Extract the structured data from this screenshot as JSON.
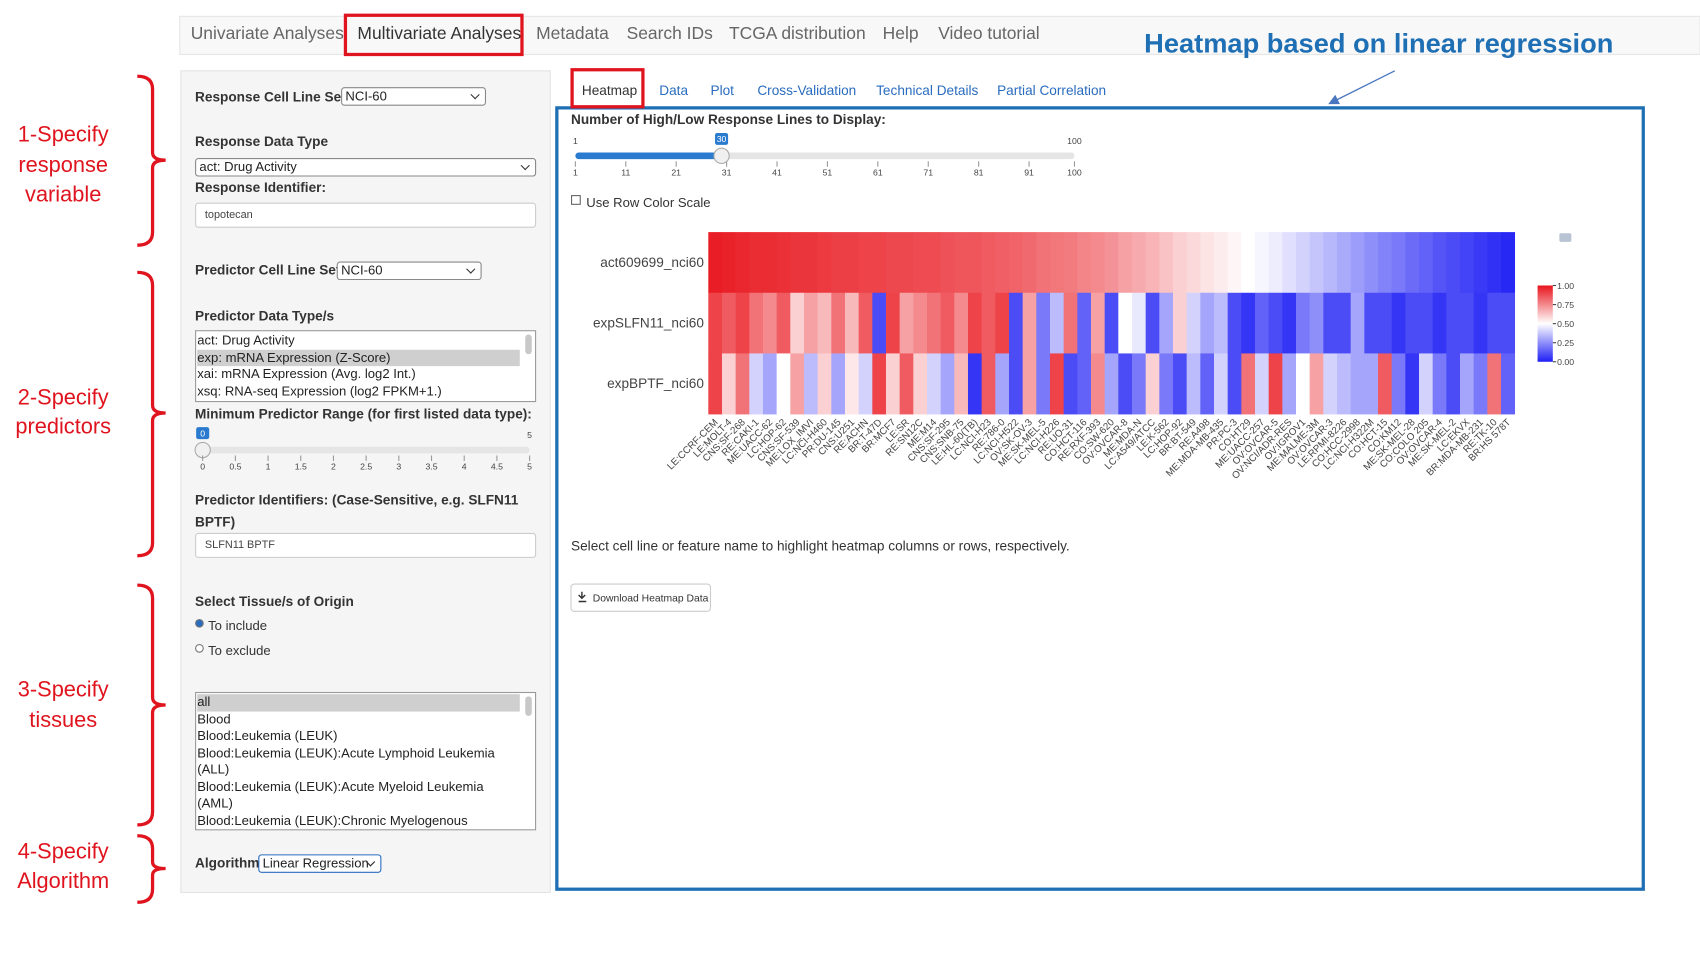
{
  "nav": {
    "tabs": [
      "Univariate Analyses",
      "Multivariate Analyses",
      "Metadata",
      "Search IDs",
      "TCGA distribution",
      "Help",
      "Video tutorial"
    ]
  },
  "title": "Heatmap based on linear regression",
  "annotations": [
    [
      "1-Specify",
      "response",
      "variable"
    ],
    [
      "2-Specify",
      "predictors"
    ],
    [
      "3-Specify",
      "tissues"
    ],
    [
      "4-Specify",
      "Algorithm"
    ]
  ],
  "sidebar": {
    "response_cell_line_set": {
      "label": "Response Cell Line Set",
      "value": "NCI-60"
    },
    "response_data_type": {
      "label": "Response Data Type",
      "value": "act: Drug Activity"
    },
    "response_identifier": {
      "label": "Response Identifier:",
      "value": "topotecan"
    },
    "predictor_cell_line_set": {
      "label": "Predictor Cell Line Set",
      "value": "NCI-60"
    },
    "predictor_data_types": {
      "label": "Predictor Data Type/s",
      "options": [
        "act: Drug Activity",
        "exp: mRNA Expression (Z-Score)",
        "xai: mRNA Expression (Avg. log2 Int.)",
        "xsq: RNA-seq Expression (log2 FPKM+1.)"
      ]
    },
    "min_predictor_range": {
      "label": "Minimum Predictor Range (for first listed data type):",
      "min": 0,
      "max": 5,
      "value": 0,
      "ticks": [
        0,
        0.5,
        1,
        1.5,
        2,
        2.5,
        3,
        3.5,
        4,
        4.5,
        5
      ]
    },
    "predictor_identifiers": {
      "label": "Predictor Identifiers: (Case-Sensitive, e.g. SLFN11 BPTF)",
      "value": "SLFN11 BPTF"
    },
    "tissue_origin": {
      "label": "Select Tissue/s of Origin",
      "options": [
        "To include",
        "To exclude"
      ]
    },
    "tissues": [
      "all",
      "Blood",
      "Blood:Leukemia (LEUK)",
      "Blood:Leukemia (LEUK):Acute Lymphoid Leukemia (ALL)",
      "Blood:Leukemia (LEUK):Acute Myeloid Leukemia (AML)",
      "Blood:Leukemia (LEUK):Chronic Myelogenous Leukemia (CML)"
    ],
    "algorithm": {
      "label": "Algorithm",
      "value": "Linear Regression"
    }
  },
  "main": {
    "subtabs": [
      "Heatmap",
      "Data",
      "Plot",
      "Cross-Validation",
      "Technical Details",
      "Partial Correlation"
    ],
    "lines_slider": {
      "label": "Number of High/Low Response Lines to Display:",
      "min": 1,
      "max": 100,
      "value": 30,
      "ticks": [
        1,
        11,
        21,
        31,
        41,
        51,
        61,
        71,
        81,
        91,
        100
      ]
    },
    "row_color_scale": "Use Row Color Scale",
    "note": "Select cell line or feature name to highlight heatmap columns or rows, respectively.",
    "download": "Download Heatmap Data"
  },
  "chart_data": {
    "type": "heatmap",
    "y": [
      "act609699_nci60",
      "expSLFN11_nci60",
      "expBPTF_nci60"
    ],
    "x": [
      "LE:CCRF-CEM",
      "LE:MOLT-4",
      "CNS:SF-268",
      "RE:CAKI-1",
      "ME:UACC-62",
      "LC:HOP-62",
      "CNS:SF-539",
      "ME:LOX_IMVI",
      "LC:NCI-H460",
      "PR:DU-145",
      "CNS:U251",
      "RE:ACHN",
      "BR:T-47D",
      "BR:MCF7",
      "LE:SR",
      "RE:SN12C",
      "ME:M14",
      "CNS:SF-295",
      "CNS:SNB-75",
      "LE:HL-60(TB)",
      "LC:NCI-H23",
      "RE:786-0",
      "LC:NCI-H522",
      "OV:SK-OV-3",
      "ME:SK-MEL-5",
      "LC:NCI-H226",
      "RE:UO-31",
      "CO:HCT-116",
      "RE:RXF-393",
      "CO:SW-620",
      "OV:OVCAR-8",
      "ME:MDA-N",
      "LC:A549/ATCC",
      "LE:K-562",
      "LC:HOP-92",
      "BR:BT-549",
      "RE:A498",
      "ME:MDA-MB-435",
      "PR:PC-3",
      "CO:HT29",
      "ME:UACC-257",
      "OV:OVCAR-5",
      "OV:NCI/ADR-RES",
      "OV:IGROV1",
      "ME:MALME-3M",
      "OV:OVCAR-3",
      "LE:RPMI-8226",
      "CO:HCC-2998",
      "LC:NCI-H322M",
      "CO:HCT-15",
      "CO:KM12",
      "ME:SK-MEL-28",
      "CO:COLO 205",
      "OV:OVCAR-4",
      "ME:SK-MEL-2",
      "LC:EKVX",
      "BR:MDA-MB-231",
      "RE:TK-10",
      "BR:HS 578T"
    ],
    "values": [
      [
        0.98,
        0.97,
        0.96,
        0.95,
        0.95,
        0.94,
        0.93,
        0.93,
        0.92,
        0.91,
        0.91,
        0.9,
        0.9,
        0.89,
        0.89,
        0.88,
        0.88,
        0.87,
        0.86,
        0.86,
        0.85,
        0.84,
        0.83,
        0.82,
        0.8,
        0.79,
        0.78,
        0.76,
        0.75,
        0.73,
        0.7,
        0.68,
        0.66,
        0.63,
        0.6,
        0.58,
        0.56,
        0.54,
        0.52,
        0.5,
        0.48,
        0.46,
        0.43,
        0.4,
        0.37,
        0.34,
        0.31,
        0.28,
        0.25,
        0.22,
        0.2,
        0.17,
        0.15,
        0.12,
        0.1,
        0.08,
        0.06,
        0.04,
        0.02
      ],
      [
        0.9,
        0.85,
        0.9,
        0.8,
        0.75,
        0.85,
        0.6,
        0.7,
        0.65,
        0.8,
        0.65,
        0.85,
        0.1,
        0.9,
        0.7,
        0.75,
        0.8,
        0.85,
        0.75,
        0.9,
        0.85,
        0.9,
        0.1,
        0.7,
        0.2,
        0.35,
        0.8,
        0.15,
        0.7,
        0.1,
        0.5,
        0.45,
        0.1,
        0.3,
        0.6,
        0.4,
        0.3,
        0.35,
        0.1,
        0.05,
        0.15,
        0.1,
        0.05,
        0.2,
        0.25,
        0.1,
        0.1,
        0.3,
        0.1,
        0.1,
        0.05,
        0.1,
        0.1,
        0.05,
        0.1,
        0.1,
        0.05,
        0.1,
        0.1
      ],
      [
        0.9,
        0.6,
        0.8,
        0.4,
        0.3,
        0.5,
        0.7,
        0.35,
        0.6,
        0.3,
        0.55,
        0.4,
        0.9,
        0.6,
        0.85,
        0.6,
        0.4,
        0.3,
        0.65,
        0.05,
        0.85,
        0.3,
        0.1,
        0.7,
        0.2,
        0.9,
        0.1,
        0.15,
        0.75,
        0.3,
        0.1,
        0.2,
        0.6,
        0.2,
        0.1,
        0.35,
        0.15,
        0.4,
        0.1,
        0.8,
        0.4,
        0.9,
        0.3,
        0.5,
        0.7,
        0.4,
        0.35,
        0.3,
        0.3,
        0.85,
        0.2,
        0.05,
        0.4,
        0.2,
        0.1,
        0.3,
        0.2,
        0.8,
        0.15
      ]
    ],
    "zlim": [
      0,
      1
    ],
    "colors": [
      "#1f1ff5",
      "#ffffff",
      "#e8141c"
    ],
    "colorbar_ticks": [
      {
        "value": 1,
        "label": "1.00"
      },
      {
        "value": 0.75,
        "label": "0.75"
      },
      {
        "value": 0.5,
        "label": "0.50"
      },
      {
        "value": 0.25,
        "label": "0.25"
      },
      {
        "value": 0,
        "label": "0.00"
      }
    ]
  }
}
